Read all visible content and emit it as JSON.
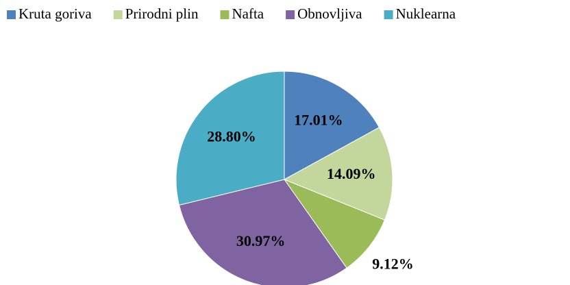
{
  "chart_data": {
    "type": "pie",
    "categories": [
      "Kruta goriva",
      "Prirodni plin",
      "Nafta",
      "Obnovljiva",
      "Nuklearna"
    ],
    "values": [
      17.01,
      14.09,
      9.12,
      30.97,
      28.8
    ],
    "value_labels": [
      "17.01%",
      "14.09%",
      "9.12%",
      "30.97%",
      "28.80%"
    ],
    "colors": [
      "#4f81bd",
      "#c3d69b",
      "#9bbb59",
      "#8064a2",
      "#4bacc6"
    ],
    "legend": "top"
  }
}
